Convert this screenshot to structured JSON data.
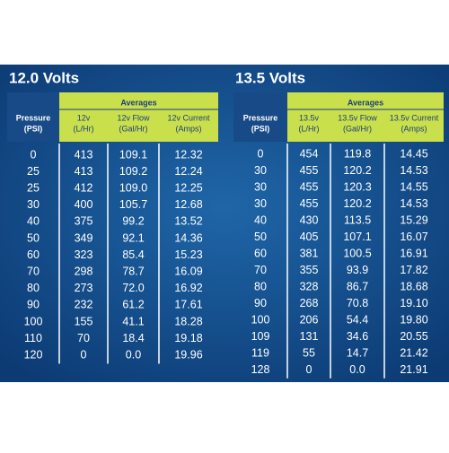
{
  "tables": [
    {
      "title": "12.0 Volts",
      "header": {
        "pressure": [
          "Pressure",
          "(PSI)"
        ],
        "averages": "Averages",
        "columns": [
          [
            "12v",
            "(L/Hr)"
          ],
          [
            "12v Flow",
            "(Gal/Hr)"
          ],
          [
            "12v Current",
            "(Amps)"
          ]
        ]
      },
      "rows": [
        [
          "0",
          "413",
          "109.1",
          "12.32"
        ],
        [
          "25",
          "413",
          "109.2",
          "12.24"
        ],
        [
          "25",
          "412",
          "109.0",
          "12.25"
        ],
        [
          "30",
          "400",
          "105.7",
          "12.68"
        ],
        [
          "40",
          "375",
          "99.2",
          "13.52"
        ],
        [
          "50",
          "349",
          "92.1",
          "14.36"
        ],
        [
          "60",
          "323",
          "85.4",
          "15.23"
        ],
        [
          "70",
          "298",
          "78.7",
          "16.09"
        ],
        [
          "80",
          "273",
          "72.0",
          "16.92"
        ],
        [
          "90",
          "232",
          "61.2",
          "17.61"
        ],
        [
          "100",
          "155",
          "41.1",
          "18.28"
        ],
        [
          "110",
          "70",
          "18.4",
          "19.18"
        ],
        [
          "120",
          "0",
          "0.0",
          "19.96"
        ]
      ]
    },
    {
      "title": "13.5 Volts",
      "header": {
        "pressure": [
          "Pressure",
          "(PSI)"
        ],
        "averages": "Averages",
        "columns": [
          [
            "13.5v",
            "(L/Hr)"
          ],
          [
            "13.5v Flow",
            "(Gal/Hr)"
          ],
          [
            "13.5v Current",
            "(Amps)"
          ]
        ]
      },
      "rows": [
        [
          "0",
          "454",
          "119.8",
          "14.45"
        ],
        [
          "30",
          "455",
          "120.2",
          "14.53"
        ],
        [
          "30",
          "455",
          "120.3",
          "14.55"
        ],
        [
          "30",
          "455",
          "120.2",
          "14.53"
        ],
        [
          "40",
          "430",
          "113.5",
          "15.29"
        ],
        [
          "50",
          "405",
          "107.1",
          "16.07"
        ],
        [
          "60",
          "381",
          "100.5",
          "16.91"
        ],
        [
          "70",
          "355",
          "93.9",
          "17.82"
        ],
        [
          "80",
          "328",
          "86.7",
          "18.68"
        ],
        [
          "90",
          "268",
          "70.8",
          "19.10"
        ],
        [
          "100",
          "206",
          "54.4",
          "19.80"
        ],
        [
          "109",
          "131",
          "34.6",
          "20.55"
        ],
        [
          "119",
          "55",
          "14.7",
          "21.42"
        ],
        [
          "128",
          "0",
          "0.0",
          "21.91"
        ]
      ]
    }
  ]
}
